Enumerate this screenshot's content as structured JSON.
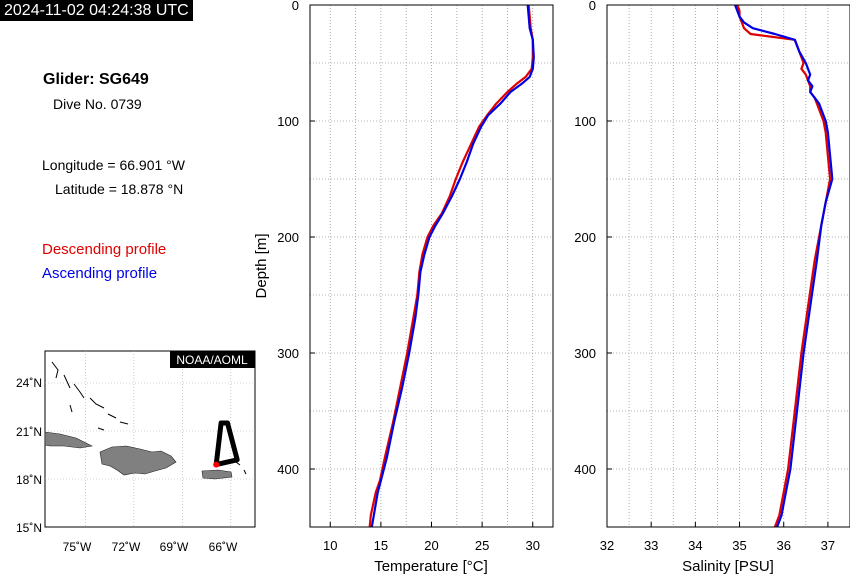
{
  "header": {
    "timestamp": "2024-11-02 04:24:38 UTC",
    "glider": "Glider: SG649",
    "dive": "Dive No. 0739",
    "longitude": "Longitude = 66.901 °W",
    "latitude": "Latitude = 18.878 °N",
    "legend_descending": "Descending profile",
    "legend_ascending": "Ascending profile"
  },
  "colors": {
    "descending": "#e00000",
    "ascending": "#0000e6",
    "land": "#808080",
    "track": "#000000",
    "position": "#ff0000"
  },
  "map": {
    "credit": "NOAA/AOML",
    "lat_ticks": [
      "24˚N",
      "21˚N",
      "18˚N",
      "15˚N"
    ],
    "lon_ticks": [
      "75˚W",
      "72˚W",
      "69˚W",
      "66˚W"
    ],
    "lon_range": [
      -77.5,
      -64.5
    ],
    "lat_range": [
      15,
      26
    ],
    "track": [
      [
        -66.9,
        18.9
      ],
      [
        -66.6,
        21.5
      ],
      [
        -66.2,
        21.5
      ],
      [
        -65.6,
        19.2
      ],
      [
        -66.9,
        18.9
      ]
    ],
    "position": [
      -66.9,
      18.9
    ]
  },
  "chart_data": [
    {
      "type": "line",
      "xlabel": "Temperature [°C]",
      "ylabel": "Depth [m]",
      "xlim": [
        8,
        32
      ],
      "ylim": [
        450,
        0
      ],
      "x_ticks": [
        "10",
        "15",
        "20",
        "25",
        "30"
      ],
      "y_ticks": [
        "0",
        "100",
        "200",
        "300",
        "400"
      ],
      "grid": true,
      "series": [
        {
          "name": "Descending profile",
          "depth": [
            0,
            20,
            30,
            45,
            55,
            62,
            68,
            75,
            85,
            95,
            105,
            120,
            135,
            150,
            165,
            180,
            190,
            200,
            215,
            230,
            250,
            270,
            300,
            330,
            360,
            390,
            410,
            420,
            440,
            450
          ],
          "values": [
            29.6,
            29.8,
            30.0,
            30.0,
            29.9,
            29.3,
            28.4,
            27.5,
            26.4,
            25.5,
            24.7,
            23.9,
            23.1,
            22.4,
            21.8,
            21.0,
            20.2,
            19.6,
            19.1,
            18.8,
            18.6,
            18.2,
            17.6,
            16.9,
            16.2,
            15.4,
            14.9,
            14.5,
            14.0,
            13.9
          ]
        },
        {
          "name": "Ascending profile",
          "depth": [
            0,
            20,
            30,
            45,
            55,
            62,
            68,
            75,
            85,
            95,
            105,
            120,
            135,
            150,
            165,
            180,
            190,
            200,
            215,
            230,
            250,
            270,
            300,
            330,
            360,
            390,
            410,
            420,
            440,
            450
          ],
          "values": [
            29.5,
            29.7,
            30.0,
            30.1,
            30.0,
            29.7,
            28.9,
            27.8,
            26.8,
            25.6,
            24.9,
            24.1,
            23.5,
            22.8,
            22.0,
            21.1,
            20.4,
            19.8,
            19.3,
            18.9,
            18.7,
            18.4,
            17.8,
            17.1,
            16.3,
            15.6,
            15.0,
            14.7,
            14.3,
            14.1
          ]
        }
      ]
    },
    {
      "type": "line",
      "xlabel": "Salinity [PSU]",
      "ylabel": "Depth [m]",
      "xlim": [
        32,
        37.5
      ],
      "ylim": [
        450,
        0
      ],
      "x_ticks": [
        "32",
        "33",
        "34",
        "35",
        "36",
        "37"
      ],
      "y_ticks": [
        "0",
        "100",
        "200",
        "300",
        "400"
      ],
      "grid": true,
      "series": [
        {
          "name": "Descending profile",
          "depth": [
            0,
            5,
            10,
            15,
            20,
            25,
            30,
            40,
            50,
            55,
            60,
            65,
            70,
            75,
            80,
            85,
            90,
            100,
            110,
            130,
            150,
            170,
            190,
            220,
            260,
            300,
            350,
            400,
            420,
            440,
            450
          ],
          "values": [
            34.95,
            35.0,
            35.0,
            35.05,
            35.1,
            35.25,
            36.25,
            36.35,
            36.45,
            36.4,
            36.5,
            36.55,
            36.6,
            36.6,
            36.7,
            36.75,
            36.8,
            36.9,
            36.95,
            37.0,
            37.05,
            36.95,
            36.85,
            36.7,
            36.55,
            36.4,
            36.25,
            36.1,
            36.0,
            35.9,
            35.8
          ]
        },
        {
          "name": "Ascending profile",
          "depth": [
            0,
            5,
            10,
            15,
            20,
            25,
            30,
            40,
            50,
            55,
            60,
            65,
            70,
            75,
            80,
            85,
            90,
            100,
            110,
            130,
            150,
            170,
            190,
            220,
            260,
            300,
            350,
            400,
            420,
            440,
            450
          ],
          "values": [
            34.9,
            34.95,
            35.0,
            35.1,
            35.3,
            35.8,
            36.25,
            36.35,
            36.5,
            36.55,
            36.6,
            36.55,
            36.65,
            36.6,
            36.7,
            36.8,
            36.85,
            36.95,
            37.0,
            37.05,
            37.1,
            36.95,
            36.85,
            36.75,
            36.6,
            36.45,
            36.3,
            36.15,
            36.05,
            35.95,
            35.85
          ]
        }
      ]
    }
  ]
}
